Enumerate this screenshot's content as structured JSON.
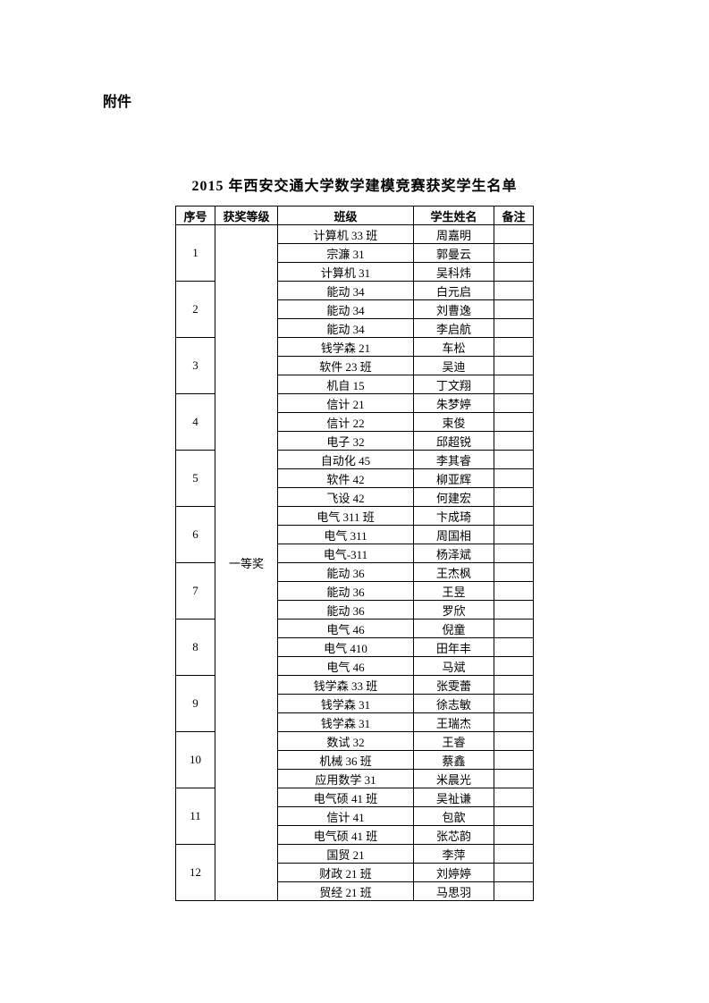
{
  "attachment_label": "附件",
  "title": "2015 年西安交通大学数学建模竞赛获奖学生名单",
  "headers": {
    "seq": "序号",
    "award": "获奖等级",
    "class": "班级",
    "name": "学生姓名",
    "remark": "备注"
  },
  "award_level": "一等奖",
  "groups": [
    {
      "seq": "1",
      "rows": [
        {
          "class": "计算机 33 班",
          "name": "周嘉明",
          "remark": ""
        },
        {
          "class": "宗濂 31",
          "name": "郭曼云",
          "remark": ""
        },
        {
          "class": "计算机 31",
          "name": "吴科炜",
          "remark": ""
        }
      ]
    },
    {
      "seq": "2",
      "rows": [
        {
          "class": "能动 34",
          "name": "白元启",
          "remark": ""
        },
        {
          "class": "能动 34",
          "name": "刘曹逸",
          "remark": ""
        },
        {
          "class": "能动 34",
          "name": "李启航",
          "remark": ""
        }
      ]
    },
    {
      "seq": "3",
      "rows": [
        {
          "class": "钱学森 21",
          "name": "车松",
          "remark": ""
        },
        {
          "class": "软件 23 班",
          "name": "吴迪",
          "remark": ""
        },
        {
          "class": "机自 15",
          "name": "丁文翔",
          "remark": ""
        }
      ]
    },
    {
      "seq": "4",
      "rows": [
        {
          "class": "信计 21",
          "name": "朱梦婷",
          "remark": ""
        },
        {
          "class": "信计 22",
          "name": "束俊",
          "remark": ""
        },
        {
          "class": "电子 32",
          "name": "邱超锐",
          "remark": ""
        }
      ]
    },
    {
      "seq": "5",
      "rows": [
        {
          "class": "自动化 45",
          "name": "李其睿",
          "remark": ""
        },
        {
          "class": "软件 42",
          "name": "柳亚辉",
          "remark": ""
        },
        {
          "class": "飞设 42",
          "name": "何建宏",
          "remark": ""
        }
      ]
    },
    {
      "seq": "6",
      "rows": [
        {
          "class": "电气 311 班",
          "name": "卞成琦",
          "remark": ""
        },
        {
          "class": "电气 311",
          "name": "周国相",
          "remark": ""
        },
        {
          "class": "电气-311",
          "name": "杨泽斌",
          "remark": ""
        }
      ]
    },
    {
      "seq": "7",
      "rows": [
        {
          "class": "能动 36",
          "name": "王杰枫",
          "remark": ""
        },
        {
          "class": "能动 36",
          "name": "王昱",
          "remark": ""
        },
        {
          "class": "能动 36",
          "name": "罗欣",
          "remark": ""
        }
      ]
    },
    {
      "seq": "8",
      "rows": [
        {
          "class": "电气 46",
          "name": "倪童",
          "remark": ""
        },
        {
          "class": "电气 410",
          "name": "田年丰",
          "remark": ""
        },
        {
          "class": "电气 46",
          "name": "马斌",
          "remark": ""
        }
      ]
    },
    {
      "seq": "9",
      "rows": [
        {
          "class": "钱学森 33 班",
          "name": "张雯蕾",
          "remark": ""
        },
        {
          "class": "钱学森 31",
          "name": "徐志敏",
          "remark": ""
        },
        {
          "class": "钱学森 31",
          "name": "王瑞杰",
          "remark": ""
        }
      ]
    },
    {
      "seq": "10",
      "rows": [
        {
          "class": "数试 32",
          "name": "王睿",
          "remark": ""
        },
        {
          "class": "机械 36 班",
          "name": "蔡鑫",
          "remark": ""
        },
        {
          "class": "应用数学 31",
          "name": "米晨光",
          "remark": ""
        }
      ]
    },
    {
      "seq": "11",
      "rows": [
        {
          "class": "电气硕 41 班",
          "name": "吴祉谦",
          "remark": ""
        },
        {
          "class": "信计 41",
          "name": "包歆",
          "remark": ""
        },
        {
          "class": "电气硕 41 班",
          "name": "张芯韵",
          "remark": ""
        }
      ]
    },
    {
      "seq": "12",
      "rows": [
        {
          "class": "国贸 21",
          "name": "李萍",
          "remark": ""
        },
        {
          "class": "财政 21 班",
          "name": "刘婷婷",
          "remark": ""
        },
        {
          "class": "贸经 21 班",
          "name": "马思羽",
          "remark": ""
        }
      ]
    }
  ]
}
